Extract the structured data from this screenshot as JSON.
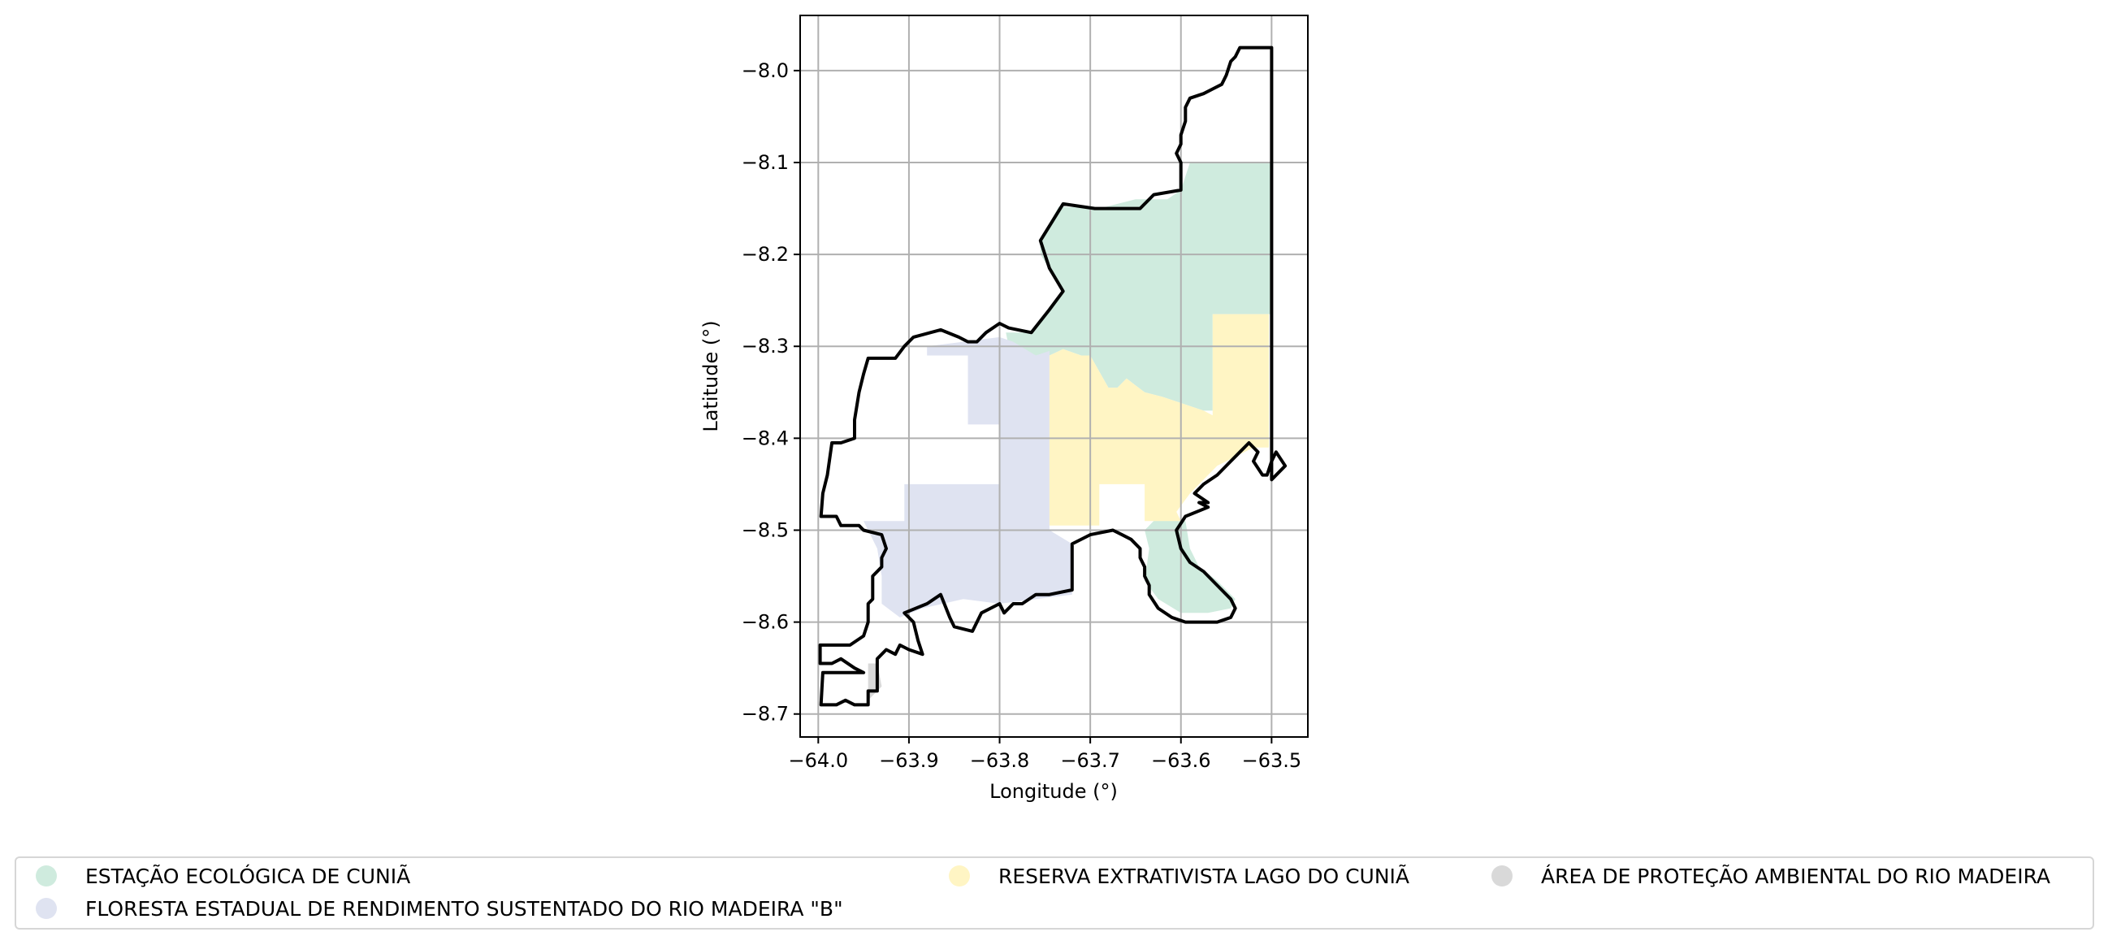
{
  "chart_data": {
    "type": "map",
    "xlabel": "Longitude (°)",
    "ylabel": "Latitude (°)",
    "xlim": [
      -64.02,
      -63.46
    ],
    "ylim": [
      -8.725,
      -7.94
    ],
    "x_ticks": [
      -64.0,
      -63.9,
      -63.8,
      -63.7,
      -63.6,
      -63.5
    ],
    "y_ticks": [
      -8.0,
      -8.1,
      -8.2,
      -8.3,
      -8.4,
      -8.5,
      -8.6,
      -8.7
    ],
    "x_tick_labels": [
      "−64.0",
      "−63.9",
      "−63.8",
      "−63.7",
      "−63.6",
      "−63.5"
    ],
    "y_tick_labels": [
      "−8.0",
      "−8.1",
      "−8.2",
      "−8.3",
      "−8.4",
      "−8.5",
      "−8.6",
      "−8.7"
    ],
    "grid": true,
    "legend_position": "bottom",
    "areas": [
      {
        "name": "ESTAÇÃO ECOLÓGICA DE CUNIÃ",
        "color": "#cfebde",
        "polygons": [
          [
            [
              -63.5,
              -8.1
            ],
            [
              -63.59,
              -8.1
            ],
            [
              -63.6,
              -8.13
            ],
            [
              -63.615,
              -8.14
            ],
            [
              -63.65,
              -8.14
            ],
            [
              -63.69,
              -8.15
            ],
            [
              -63.735,
              -8.148
            ],
            [
              -63.755,
              -8.185
            ],
            [
              -63.755,
              -8.2
            ],
            [
              -63.73,
              -8.24
            ],
            [
              -63.765,
              -8.285
            ],
            [
              -63.793,
              -8.285
            ],
            [
              -63.79,
              -8.3
            ],
            [
              -63.775,
              -8.32
            ],
            [
              -63.745,
              -8.31
            ],
            [
              -63.73,
              -8.303
            ],
            [
              -63.71,
              -8.31
            ],
            [
              -63.7,
              -8.31
            ],
            [
              -63.68,
              -8.345
            ],
            [
              -63.67,
              -8.345
            ],
            [
              -63.66,
              -8.335
            ],
            [
              -63.64,
              -8.35
            ],
            [
              -63.62,
              -8.355
            ],
            [
              -63.605,
              -8.36
            ],
            [
              -63.575,
              -8.37
            ],
            [
              -63.565,
              -8.37
            ],
            [
              -63.565,
              -8.265
            ],
            [
              -63.5,
              -8.265
            ]
          ],
          [
            [
              -63.625,
              -8.485
            ],
            [
              -63.595,
              -8.49
            ],
            [
              -63.59,
              -8.52
            ],
            [
              -63.58,
              -8.54
            ],
            [
              -63.56,
              -8.555
            ],
            [
              -63.54,
              -8.575
            ],
            [
              -63.545,
              -8.585
            ],
            [
              -63.57,
              -8.59
            ],
            [
              -63.6,
              -8.59
            ],
            [
              -63.625,
              -8.575
            ],
            [
              -63.64,
              -8.555
            ],
            [
              -63.635,
              -8.52
            ],
            [
              -63.64,
              -8.5
            ]
          ]
        ]
      },
      {
        "name": "FLORESTA ESTADUAL DE RENDIMENTO SUSTENTADO DO RIO MADEIRA \"B\"",
        "color": "#dfe3f1",
        "polygons": [
          [
            [
              -63.88,
              -8.3
            ],
            [
              -63.84,
              -8.295
            ],
            [
              -63.8,
              -8.29
            ],
            [
              -63.785,
              -8.295
            ],
            [
              -63.76,
              -8.31
            ],
            [
              -63.745,
              -8.305
            ],
            [
              -63.745,
              -8.5
            ],
            [
              -63.72,
              -8.515
            ],
            [
              -63.72,
              -8.57
            ],
            [
              -63.76,
              -8.575
            ],
            [
              -63.8,
              -8.58
            ],
            [
              -63.84,
              -8.575
            ],
            [
              -63.885,
              -8.585
            ],
            [
              -63.91,
              -8.595
            ],
            [
              -63.93,
              -8.58
            ],
            [
              -63.93,
              -8.55
            ],
            [
              -63.935,
              -8.52
            ],
            [
              -63.95,
              -8.49
            ],
            [
              -63.905,
              -8.49
            ],
            [
              -63.905,
              -8.45
            ],
            [
              -63.8,
              -8.45
            ],
            [
              -63.8,
              -8.385
            ],
            [
              -63.835,
              -8.385
            ],
            [
              -63.835,
              -8.31
            ],
            [
              -63.88,
              -8.31
            ]
          ]
        ]
      },
      {
        "name": "RESERVA EXTRATIVISTA LAGO DO CUNIÃ",
        "color": "#fff5c4",
        "polygons": [
          [
            [
              -63.745,
              -8.31
            ],
            [
              -63.73,
              -8.303
            ],
            [
              -63.71,
              -8.31
            ],
            [
              -63.7,
              -8.31
            ],
            [
              -63.68,
              -8.345
            ],
            [
              -63.67,
              -8.345
            ],
            [
              -63.66,
              -8.335
            ],
            [
              -63.64,
              -8.35
            ],
            [
              -63.62,
              -8.355
            ],
            [
              -63.605,
              -8.36
            ],
            [
              -63.575,
              -8.37
            ],
            [
              -63.565,
              -8.375
            ],
            [
              -63.565,
              -8.265
            ],
            [
              -63.503,
              -8.265
            ],
            [
              -63.503,
              -8.41
            ],
            [
              -63.52,
              -8.41
            ],
            [
              -63.56,
              -8.43
            ],
            [
              -63.59,
              -8.46
            ],
            [
              -63.605,
              -8.48
            ],
            [
              -63.6,
              -8.49
            ],
            [
              -63.64,
              -8.49
            ],
            [
              -63.64,
              -8.45
            ],
            [
              -63.69,
              -8.45
            ],
            [
              -63.69,
              -8.495
            ],
            [
              -63.745,
              -8.495
            ]
          ]
        ]
      },
      {
        "name": "ÁREA DE PROTEÇÃO AMBIENTAL DO RIO MADEIRA",
        "color": "#d9d9d9",
        "polygons": [
          [
            [
              -63.945,
              -8.645
            ],
            [
              -63.935,
              -8.645
            ],
            [
              -63.93,
              -8.67
            ],
            [
              -63.945,
              -8.685
            ]
          ]
        ]
      }
    ],
    "boundary": [
      [
        -63.5,
        -7.975
      ],
      [
        -63.515,
        -7.975
      ],
      [
        -63.535,
        -7.975
      ],
      [
        -63.54,
        -7.985
      ],
      [
        -63.545,
        -7.99
      ],
      [
        -63.55,
        -8.005
      ],
      [
        -63.555,
        -8.015
      ],
      [
        -63.565,
        -8.02
      ],
      [
        -63.575,
        -8.025
      ],
      [
        -63.59,
        -8.03
      ],
      [
        -63.595,
        -8.04
      ],
      [
        -63.595,
        -8.055
      ],
      [
        -63.6,
        -8.07
      ],
      [
        -63.6,
        -8.08
      ],
      [
        -63.605,
        -8.09
      ],
      [
        -63.6,
        -8.1
      ],
      [
        -63.6,
        -8.12
      ],
      [
        -63.6,
        -8.13
      ],
      [
        -63.63,
        -8.135
      ],
      [
        -63.645,
        -8.15
      ],
      [
        -63.675,
        -8.15
      ],
      [
        -63.695,
        -8.15
      ],
      [
        -63.73,
        -8.145
      ],
      [
        -63.755,
        -8.185
      ],
      [
        -63.75,
        -8.2
      ],
      [
        -63.745,
        -8.215
      ],
      [
        -63.73,
        -8.24
      ],
      [
        -63.745,
        -8.26
      ],
      [
        -63.765,
        -8.285
      ],
      [
        -63.79,
        -8.28
      ],
      [
        -63.8,
        -8.275
      ],
      [
        -63.815,
        -8.285
      ],
      [
        -63.825,
        -8.295
      ],
      [
        -63.835,
        -8.295
      ],
      [
        -63.845,
        -8.29
      ],
      [
        -63.865,
        -8.282
      ],
      [
        -63.895,
        -8.29
      ],
      [
        -63.905,
        -8.3
      ],
      [
        -63.915,
        -8.313
      ],
      [
        -63.945,
        -8.313
      ],
      [
        -63.95,
        -8.33
      ],
      [
        -63.955,
        -8.35
      ],
      [
        -63.96,
        -8.38
      ],
      [
        -63.96,
        -8.4
      ],
      [
        -63.975,
        -8.405
      ],
      [
        -63.985,
        -8.405
      ],
      [
        -63.99,
        -8.44
      ],
      [
        -63.995,
        -8.46
      ],
      [
        -63.997,
        -8.485
      ],
      [
        -63.98,
        -8.485
      ],
      [
        -63.975,
        -8.495
      ],
      [
        -63.955,
        -8.495
      ],
      [
        -63.95,
        -8.5
      ],
      [
        -63.93,
        -8.505
      ],
      [
        -63.925,
        -8.52
      ],
      [
        -63.93,
        -8.53
      ],
      [
        -63.93,
        -8.54
      ],
      [
        -63.94,
        -8.55
      ],
      [
        -63.94,
        -8.575
      ],
      [
        -63.945,
        -8.58
      ],
      [
        -63.945,
        -8.6
      ],
      [
        -63.95,
        -8.615
      ],
      [
        -63.965,
        -8.625
      ],
      [
        -63.98,
        -8.625
      ],
      [
        -63.998,
        -8.625
      ],
      [
        -63.998,
        -8.645
      ],
      [
        -63.985,
        -8.645
      ],
      [
        -63.975,
        -8.64
      ],
      [
        -63.96,
        -8.65
      ],
      [
        -63.95,
        -8.655
      ],
      [
        -63.995,
        -8.655
      ],
      [
        -63.997,
        -8.69
      ],
      [
        -63.98,
        -8.69
      ],
      [
        -63.97,
        -8.685
      ],
      [
        -63.96,
        -8.69
      ],
      [
        -63.945,
        -8.69
      ],
      [
        -63.945,
        -8.675
      ],
      [
        -63.935,
        -8.675
      ],
      [
        -63.935,
        -8.64
      ],
      [
        -63.925,
        -8.63
      ],
      [
        -63.915,
        -8.635
      ],
      [
        -63.91,
        -8.625
      ],
      [
        -63.9,
        -8.63
      ],
      [
        -63.885,
        -8.635
      ],
      [
        -63.89,
        -8.62
      ],
      [
        -63.895,
        -8.6
      ],
      [
        -63.905,
        -8.59
      ],
      [
        -63.88,
        -8.58
      ],
      [
        -63.865,
        -8.57
      ],
      [
        -63.855,
        -8.595
      ],
      [
        -63.85,
        -8.605
      ],
      [
        -63.83,
        -8.61
      ],
      [
        -63.82,
        -8.59
      ],
      [
        -63.8,
        -8.58
      ],
      [
        -63.795,
        -8.59
      ],
      [
        -63.785,
        -8.58
      ],
      [
        -63.775,
        -8.58
      ],
      [
        -63.76,
        -8.57
      ],
      [
        -63.745,
        -8.57
      ],
      [
        -63.72,
        -8.565
      ],
      [
        -63.72,
        -8.515
      ],
      [
        -63.7,
        -8.505
      ],
      [
        -63.675,
        -8.5
      ],
      [
        -63.665,
        -8.505
      ],
      [
        -63.655,
        -8.51
      ],
      [
        -63.645,
        -8.52
      ],
      [
        -63.645,
        -8.53
      ],
      [
        -63.64,
        -8.54
      ],
      [
        -63.64,
        -8.55
      ],
      [
        -63.635,
        -8.56
      ],
      [
        -63.635,
        -8.57
      ],
      [
        -63.625,
        -8.585
      ],
      [
        -63.61,
        -8.595
      ],
      [
        -63.595,
        -8.6
      ],
      [
        -63.58,
        -8.6
      ],
      [
        -63.56,
        -8.6
      ],
      [
        -63.545,
        -8.595
      ],
      [
        -63.54,
        -8.585
      ],
      [
        -63.545,
        -8.575
      ],
      [
        -63.56,
        -8.56
      ],
      [
        -63.575,
        -8.545
      ],
      [
        -63.59,
        -8.535
      ],
      [
        -63.6,
        -8.52
      ],
      [
        -63.605,
        -8.5
      ],
      [
        -63.595,
        -8.485
      ],
      [
        -63.57,
        -8.475
      ],
      [
        -63.58,
        -8.47
      ],
      [
        -63.57,
        -8.47
      ],
      [
        -63.585,
        -8.46
      ],
      [
        -63.575,
        -8.45
      ],
      [
        -63.56,
        -8.44
      ],
      [
        -63.545,
        -8.425
      ],
      [
        -63.525,
        -8.405
      ],
      [
        -63.515,
        -8.415
      ],
      [
        -63.52,
        -8.425
      ],
      [
        -63.51,
        -8.44
      ],
      [
        -63.505,
        -8.44
      ],
      [
        -63.5,
        -8.425
      ],
      [
        -63.495,
        -8.415
      ],
      [
        -63.485,
        -8.43
      ],
      [
        -63.5,
        -8.445
      ],
      [
        -63.5,
        -8.41
      ],
      [
        -63.5,
        -8.3
      ],
      [
        -63.5,
        -8.2
      ],
      [
        -63.5,
        -8.1
      ],
      [
        -63.5,
        -8.065
      ],
      [
        -63.5,
        -7.975
      ]
    ]
  },
  "legend": {
    "items": [
      {
        "label": "ESTAÇÃO ECOLÓGICA DE CUNIÃ",
        "color": "#cfebde"
      },
      {
        "label": "FLORESTA ESTADUAL DE RENDIMENTO SUSTENTADO DO RIO MADEIRA \"B\"",
        "color": "#dfe3f1"
      },
      {
        "label": "RESERVA EXTRATIVISTA LAGO DO CUNIÃ",
        "color": "#fff5c4"
      },
      {
        "label": "ÁREA DE PROTEÇÃO AMBIENTAL DO RIO MADEIRA",
        "color": "#d9d9d9"
      }
    ]
  }
}
